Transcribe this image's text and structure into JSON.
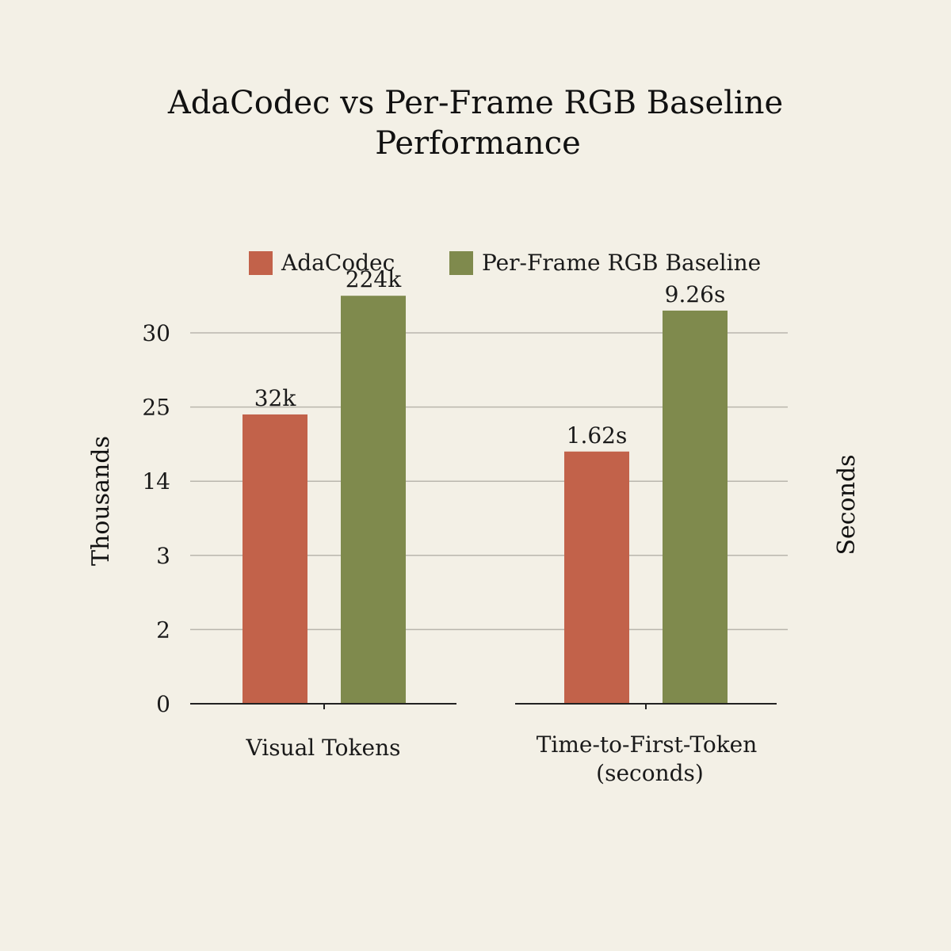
{
  "chart_data": {
    "type": "bar",
    "title": "AdaCodec vs Per-Frame RGB Baseline Performance",
    "title_lines": [
      "AdaCodec vs Per-Frame RGB Baseline",
      "Performance"
    ],
    "ylabel_left": "Thousands",
    "ylabel_right": "Seconds",
    "y_tick_labels": [
      "0",
      "2",
      "3",
      "14",
      "25",
      "30"
    ],
    "categories": [
      "Visual Tokens",
      "Time-to-First-Token (seconds)"
    ],
    "category_lines": [
      [
        "Visual Tokens"
      ],
      [
        "Time-to-First-Token",
        "(seconds)"
      ]
    ],
    "series": [
      {
        "name": "AdaCodec",
        "color": "#c2624a",
        "values": [
          32,
          1.62
        ],
        "labels": [
          "32k",
          "1.62s"
        ],
        "tick_position": [
          3.9,
          3.4
        ]
      },
      {
        "name": "Per-Frame RGB Baseline",
        "color": "#7f8a4d",
        "values": [
          224,
          9.26
        ],
        "labels": [
          "224k",
          "9.26s"
        ],
        "tick_position": [
          5.5,
          5.3
        ]
      }
    ],
    "grid": true,
    "legend_placement": "top"
  }
}
